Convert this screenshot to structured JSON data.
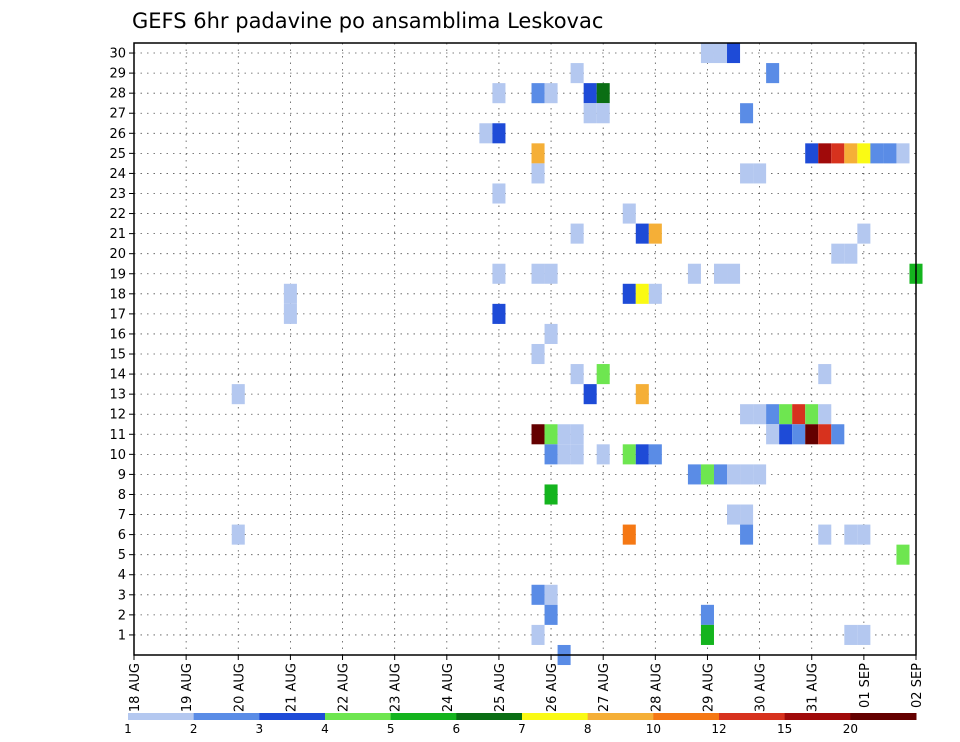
{
  "chart_data": {
    "type": "heatmap",
    "title": "GEFS 6hr padavine po ansamblima Leskovac",
    "x_tick_labels": [
      "18 AUG",
      "19 AUG",
      "20 AUG",
      "21 AUG",
      "22 AUG",
      "23 AUG",
      "24 AUG",
      "25 AUG",
      "26 AUG",
      "27 AUG",
      "28 AUG",
      "29 AUG",
      "30 AUG",
      "31 AUG",
      "01 SEP",
      "02 SEP"
    ],
    "y_tick_labels": [
      "1",
      "2",
      "3",
      "4",
      "5",
      "6",
      "7",
      "8",
      "9",
      "10",
      "11",
      "12",
      "13",
      "14",
      "15",
      "16",
      "17",
      "18",
      "19",
      "20",
      "21",
      "22",
      "23",
      "24",
      "25",
      "26",
      "27",
      "28",
      "29",
      "30"
    ],
    "x_unit": "day index from 18 AUG (6-hour steps)",
    "ylim": [
      0,
      30
    ],
    "grid": "dotted",
    "legend": {
      "position": "bottom",
      "thresholds": [
        "1",
        "2",
        "3",
        "4",
        "5",
        "6",
        "7",
        "8",
        "10",
        "12",
        "15",
        "20"
      ],
      "colors": [
        "#b4c8f0",
        "#5a8ce6",
        "#1e4bd7",
        "#6ee650",
        "#14b41e",
        "#0a6e14",
        "#fafa14",
        "#f5af37",
        "#f57814",
        "#d7321e",
        "#a00a0a",
        "#640000"
      ]
    },
    "cells": [
      {
        "x": 11.0,
        "y": 30,
        "c": 0
      },
      {
        "x": 11.25,
        "y": 30,
        "c": 0
      },
      {
        "x": 11.5,
        "y": 30,
        "c": 2
      },
      {
        "x": 8.5,
        "y": 29,
        "c": 0
      },
      {
        "x": 12.25,
        "y": 29,
        "c": 1
      },
      {
        "x": 7.0,
        "y": 28,
        "c": 0
      },
      {
        "x": 7.75,
        "y": 28,
        "c": 1
      },
      {
        "x": 8.0,
        "y": 28,
        "c": 0
      },
      {
        "x": 8.75,
        "y": 28,
        "c": 2
      },
      {
        "x": 9.0,
        "y": 28,
        "c": 5
      },
      {
        "x": 8.75,
        "y": 27,
        "c": 0
      },
      {
        "x": 9.0,
        "y": 27,
        "c": 0
      },
      {
        "x": 11.75,
        "y": 27,
        "c": 1
      },
      {
        "x": 6.75,
        "y": 26,
        "c": 0
      },
      {
        "x": 7.0,
        "y": 26,
        "c": 2
      },
      {
        "x": 7.75,
        "y": 25,
        "c": 7
      },
      {
        "x": 13.0,
        "y": 25,
        "c": 2
      },
      {
        "x": 13.25,
        "y": 25,
        "c": 10
      },
      {
        "x": 13.5,
        "y": 25,
        "c": 9
      },
      {
        "x": 13.75,
        "y": 25,
        "c": 7
      },
      {
        "x": 14.0,
        "y": 25,
        "c": 6
      },
      {
        "x": 14.25,
        "y": 25,
        "c": 1
      },
      {
        "x": 14.5,
        "y": 25,
        "c": 1
      },
      {
        "x": 14.75,
        "y": 25,
        "c": 0
      },
      {
        "x": 7.75,
        "y": 24,
        "c": 0
      },
      {
        "x": 11.75,
        "y": 24,
        "c": 0
      },
      {
        "x": 12.0,
        "y": 24,
        "c": 0
      },
      {
        "x": 7.0,
        "y": 23,
        "c": 0
      },
      {
        "x": 9.5,
        "y": 22,
        "c": 0
      },
      {
        "x": 8.5,
        "y": 21,
        "c": 0
      },
      {
        "x": 9.75,
        "y": 21,
        "c": 2
      },
      {
        "x": 10.0,
        "y": 21,
        "c": 7
      },
      {
        "x": 14.0,
        "y": 21,
        "c": 0
      },
      {
        "x": 13.5,
        "y": 20,
        "c": 0
      },
      {
        "x": 13.75,
        "y": 20,
        "c": 0
      },
      {
        "x": 7.0,
        "y": 19,
        "c": 0
      },
      {
        "x": 7.75,
        "y": 19,
        "c": 0
      },
      {
        "x": 8.0,
        "y": 19,
        "c": 0
      },
      {
        "x": 10.75,
        "y": 19,
        "c": 0
      },
      {
        "x": 11.25,
        "y": 19,
        "c": 0
      },
      {
        "x": 11.5,
        "y": 19,
        "c": 0
      },
      {
        "x": 15.0,
        "y": 19,
        "c": 4
      },
      {
        "x": 3.0,
        "y": 18,
        "c": 0
      },
      {
        "x": 9.5,
        "y": 18,
        "c": 2
      },
      {
        "x": 9.75,
        "y": 18,
        "c": 6
      },
      {
        "x": 10.0,
        "y": 18,
        "c": 0
      },
      {
        "x": 3.0,
        "y": 17,
        "c": 0
      },
      {
        "x": 7.0,
        "y": 17,
        "c": 2
      },
      {
        "x": 8.0,
        "y": 16,
        "c": 0
      },
      {
        "x": 7.75,
        "y": 15,
        "c": 0
      },
      {
        "x": 8.5,
        "y": 14,
        "c": 0
      },
      {
        "x": 9.0,
        "y": 14,
        "c": 3
      },
      {
        "x": 13.25,
        "y": 14,
        "c": 0
      },
      {
        "x": 2.0,
        "y": 13,
        "c": 0
      },
      {
        "x": 8.75,
        "y": 13,
        "c": 2
      },
      {
        "x": 9.75,
        "y": 13,
        "c": 7
      },
      {
        "x": 11.75,
        "y": 12,
        "c": 0
      },
      {
        "x": 12.0,
        "y": 12,
        "c": 0
      },
      {
        "x": 12.25,
        "y": 12,
        "c": 1
      },
      {
        "x": 12.5,
        "y": 12,
        "c": 3
      },
      {
        "x": 12.75,
        "y": 12,
        "c": 9
      },
      {
        "x": 13.0,
        "y": 12,
        "c": 3
      },
      {
        "x": 13.25,
        "y": 12,
        "c": 0
      },
      {
        "x": 7.75,
        "y": 11,
        "c": 11
      },
      {
        "x": 8.0,
        "y": 11,
        "c": 3
      },
      {
        "x": 8.25,
        "y": 11,
        "c": 0
      },
      {
        "x": 8.5,
        "y": 11,
        "c": 0
      },
      {
        "x": 12.25,
        "y": 11,
        "c": 0
      },
      {
        "x": 12.5,
        "y": 11,
        "c": 2
      },
      {
        "x": 12.75,
        "y": 11,
        "c": 1
      },
      {
        "x": 13.0,
        "y": 11,
        "c": 11
      },
      {
        "x": 13.25,
        "y": 11,
        "c": 9
      },
      {
        "x": 13.5,
        "y": 11,
        "c": 1
      },
      {
        "x": 8.0,
        "y": 10,
        "c": 1
      },
      {
        "x": 8.25,
        "y": 10,
        "c": 0
      },
      {
        "x": 8.5,
        "y": 10,
        "c": 0
      },
      {
        "x": 9.0,
        "y": 10,
        "c": 0
      },
      {
        "x": 9.5,
        "y": 10,
        "c": 3
      },
      {
        "x": 9.75,
        "y": 10,
        "c": 2
      },
      {
        "x": 10.0,
        "y": 10,
        "c": 1
      },
      {
        "x": 10.75,
        "y": 9,
        "c": 1
      },
      {
        "x": 11.0,
        "y": 9,
        "c": 3
      },
      {
        "x": 11.25,
        "y": 9,
        "c": 1
      },
      {
        "x": 11.5,
        "y": 9,
        "c": 0
      },
      {
        "x": 11.75,
        "y": 9,
        "c": 0
      },
      {
        "x": 12.0,
        "y": 9,
        "c": 0
      },
      {
        "x": 8.0,
        "y": 8,
        "c": 4
      },
      {
        "x": 11.5,
        "y": 7,
        "c": 0
      },
      {
        "x": 11.75,
        "y": 7,
        "c": 0
      },
      {
        "x": 2.0,
        "y": 6,
        "c": 0
      },
      {
        "x": 9.5,
        "y": 6,
        "c": 8
      },
      {
        "x": 11.75,
        "y": 6,
        "c": 1
      },
      {
        "x": 13.25,
        "y": 6,
        "c": 0
      },
      {
        "x": 13.75,
        "y": 6,
        "c": 0
      },
      {
        "x": 14.0,
        "y": 6,
        "c": 0
      },
      {
        "x": 14.75,
        "y": 5,
        "c": 3
      },
      {
        "x": 7.75,
        "y": 3,
        "c": 1
      },
      {
        "x": 8.0,
        "y": 3,
        "c": 0
      },
      {
        "x": 8.0,
        "y": 2,
        "c": 1
      },
      {
        "x": 11.0,
        "y": 2,
        "c": 1
      },
      {
        "x": 7.75,
        "y": 1,
        "c": 0
      },
      {
        "x": 11.0,
        "y": 1,
        "c": 4
      },
      {
        "x": 13.75,
        "y": 1,
        "c": 0
      },
      {
        "x": 14.0,
        "y": 1,
        "c": 0
      },
      {
        "x": 8.25,
        "y": 0,
        "c": 1
      }
    ]
  }
}
